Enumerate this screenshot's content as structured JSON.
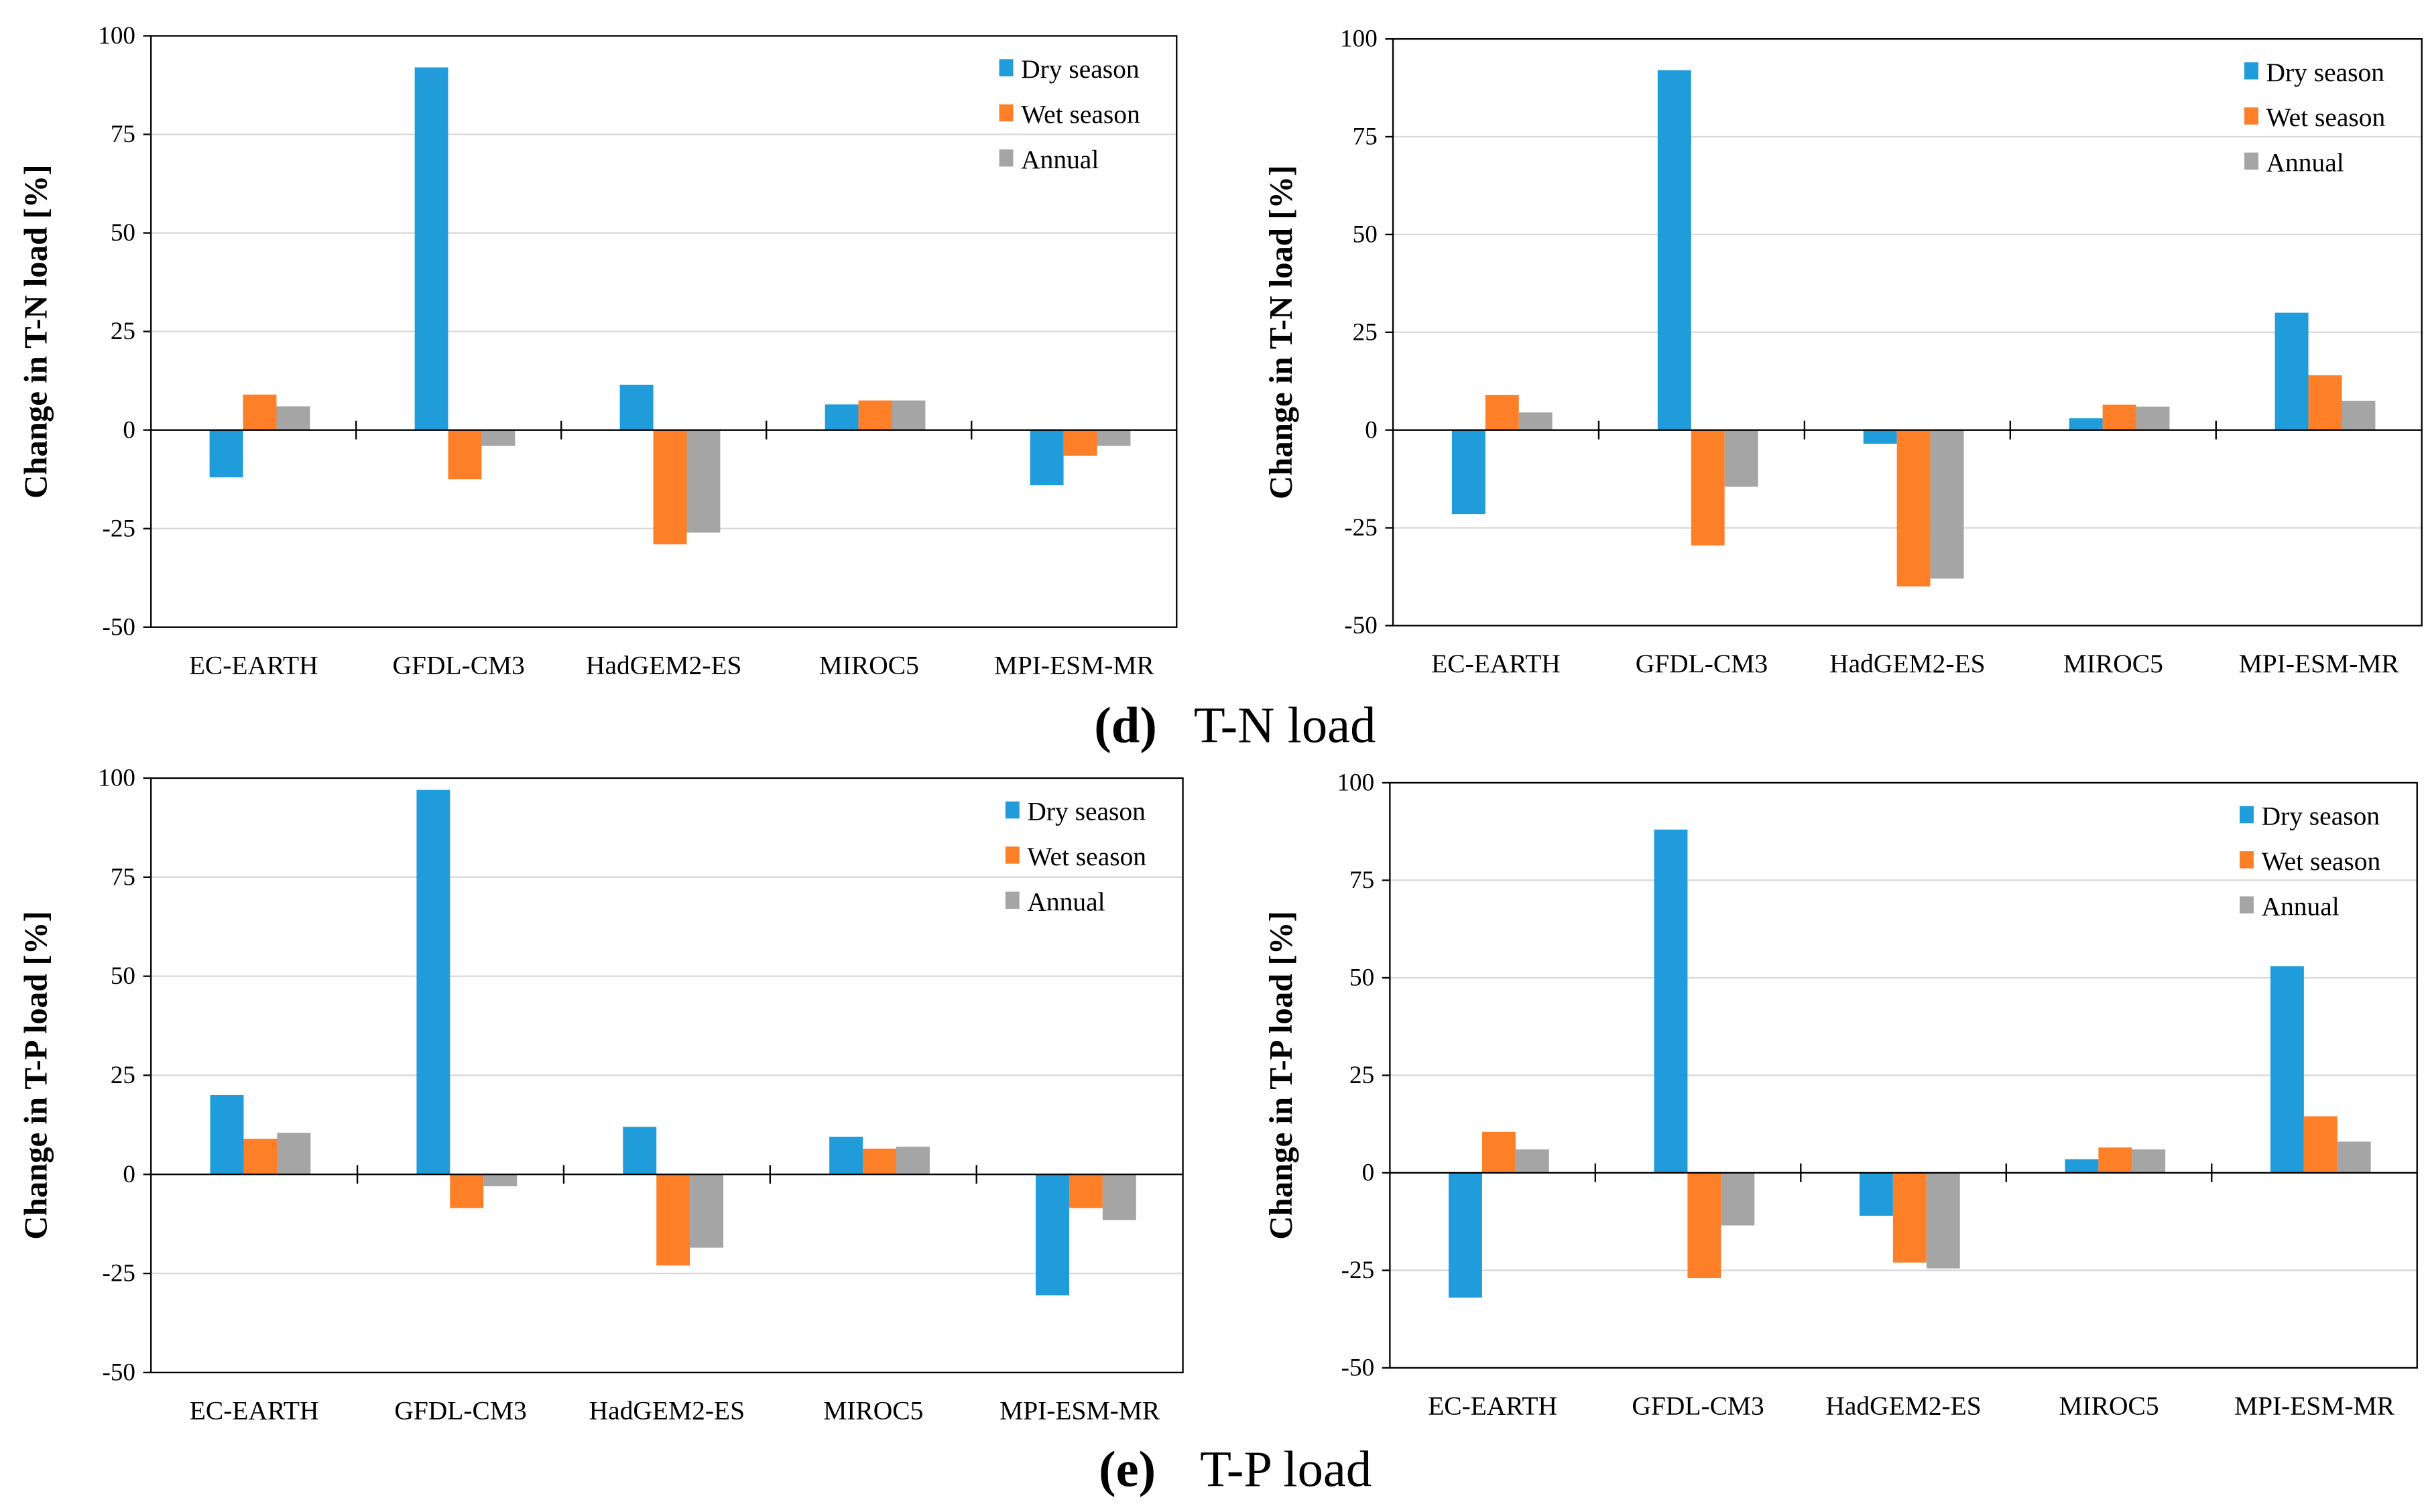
{
  "captions": [
    {
      "letter": "(d)",
      "text": "T-N load"
    },
    {
      "letter": "(e)",
      "text": "T-P load"
    }
  ],
  "colors": {
    "Dry season": "#1f9cd9",
    "Wet season": "#fd7f28",
    "Annual": "#a5a5a5"
  },
  "chart_data": [
    {
      "type": "bar",
      "title": "",
      "panel": "d-left",
      "ylabel": "Change in T-N load [%]",
      "xlabel": "",
      "ylim": [
        -50,
        100
      ],
      "yticks": [
        -50,
        -25,
        0,
        25,
        50,
        75,
        100
      ],
      "grid": true,
      "legend": "top-right",
      "categories": [
        "EC-EARTH",
        "GFDL-CM3",
        "HadGEM2-ES",
        "MIROC5",
        "MPI-ESM-MR"
      ],
      "series": [
        {
          "name": "Dry season",
          "values": [
            -12,
            92,
            11.5,
            6.5,
            -14
          ]
        },
        {
          "name": "Wet season",
          "values": [
            9,
            -12.5,
            -29,
            7.5,
            -6.5
          ]
        },
        {
          "name": "Annual",
          "values": [
            6,
            -4,
            -26,
            7.5,
            -4
          ]
        }
      ]
    },
    {
      "type": "bar",
      "title": "",
      "panel": "d-right",
      "ylabel": "Change in T-N load [%]",
      "xlabel": "",
      "ylim": [
        -50,
        100
      ],
      "yticks": [
        -50,
        -25,
        0,
        25,
        50,
        75,
        100
      ],
      "grid": true,
      "legend": "top-right",
      "categories": [
        "EC-EARTH",
        "GFDL-CM3",
        "HadGEM2-ES",
        "MIROC5",
        "MPI-ESM-MR"
      ],
      "series": [
        {
          "name": "Dry season",
          "values": [
            -21.5,
            92,
            -3.5,
            3,
            30
          ]
        },
        {
          "name": "Wet season",
          "values": [
            9,
            -29.5,
            -40,
            6.5,
            14
          ]
        },
        {
          "name": "Annual",
          "values": [
            4.5,
            -14.5,
            -38,
            6,
            7.5
          ]
        }
      ]
    },
    {
      "type": "bar",
      "title": "",
      "panel": "e-left",
      "ylabel": "Change in T-P load [%]",
      "xlabel": "",
      "ylim": [
        -50,
        100
      ],
      "yticks": [
        -50,
        -25,
        0,
        25,
        50,
        75,
        100
      ],
      "grid": true,
      "legend": "top-right",
      "categories": [
        "EC-EARTH",
        "GFDL-CM3",
        "HadGEM2-ES",
        "MIROC5",
        "MPI-ESM-MR"
      ],
      "series": [
        {
          "name": "Dry season",
          "values": [
            20,
            97,
            12,
            9.5,
            -30.5
          ]
        },
        {
          "name": "Wet season",
          "values": [
            9,
            -8.5,
            -23,
            6.5,
            -8.5
          ]
        },
        {
          "name": "Annual",
          "values": [
            10.5,
            -3,
            -18.5,
            7,
            -11.5
          ]
        }
      ]
    },
    {
      "type": "bar",
      "title": "",
      "panel": "e-right",
      "ylabel": "Change in T-P load [%]",
      "xlabel": "",
      "ylim": [
        -50,
        100
      ],
      "yticks": [
        -50,
        -25,
        0,
        25,
        50,
        75,
        100
      ],
      "grid": true,
      "legend": "top-right",
      "categories": [
        "EC-EARTH",
        "GFDL-CM3",
        "HadGEM2-ES",
        "MIROC5",
        "MPI-ESM-MR"
      ],
      "series": [
        {
          "name": "Dry season",
          "values": [
            -32,
            88,
            -11,
            3.5,
            53
          ]
        },
        {
          "name": "Wet season",
          "values": [
            10.5,
            -27,
            -23,
            6.5,
            14.5
          ]
        },
        {
          "name": "Annual",
          "values": [
            6,
            -13.5,
            -24.5,
            6,
            8
          ]
        }
      ]
    }
  ]
}
